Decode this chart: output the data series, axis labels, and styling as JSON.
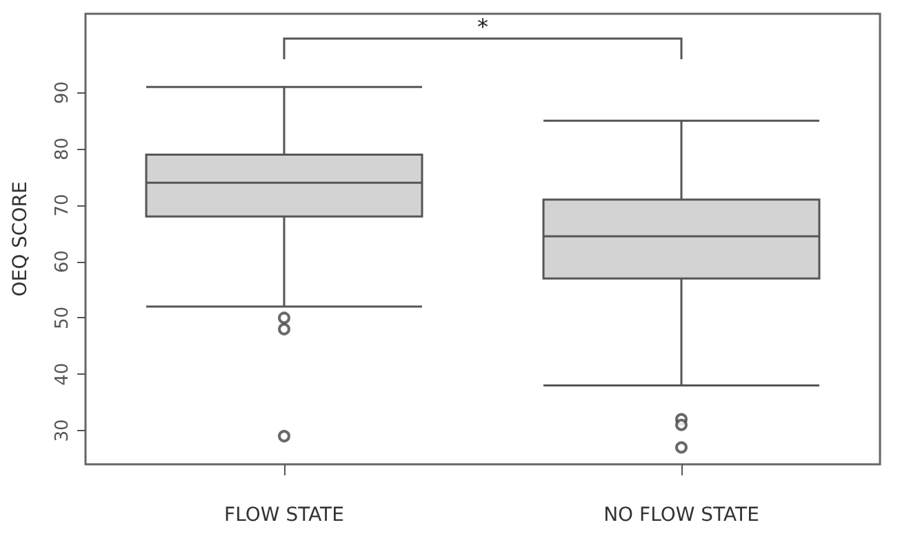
{
  "chart_data": {
    "type": "box",
    "ylabel": "OEQ SCORE",
    "categories": [
      "FLOW STATE",
      "NO FLOW STATE"
    ],
    "boxes": [
      {
        "low": 52,
        "q1": 68,
        "median": 74,
        "q3": 79,
        "high": 91,
        "outliers": [
          50,
          48,
          29
        ]
      },
      {
        "low": 38,
        "q1": 57,
        "median": 64.5,
        "q3": 71,
        "high": 85,
        "outliers": [
          32,
          31,
          27
        ]
      }
    ],
    "color": "#d3d3d3",
    "ylim": [
      24,
      104
    ],
    "yticks": [
      30,
      40,
      50,
      60,
      70,
      80,
      90
    ],
    "grid": false,
    "marker": "circle",
    "annotations": [
      "*"
    ]
  }
}
